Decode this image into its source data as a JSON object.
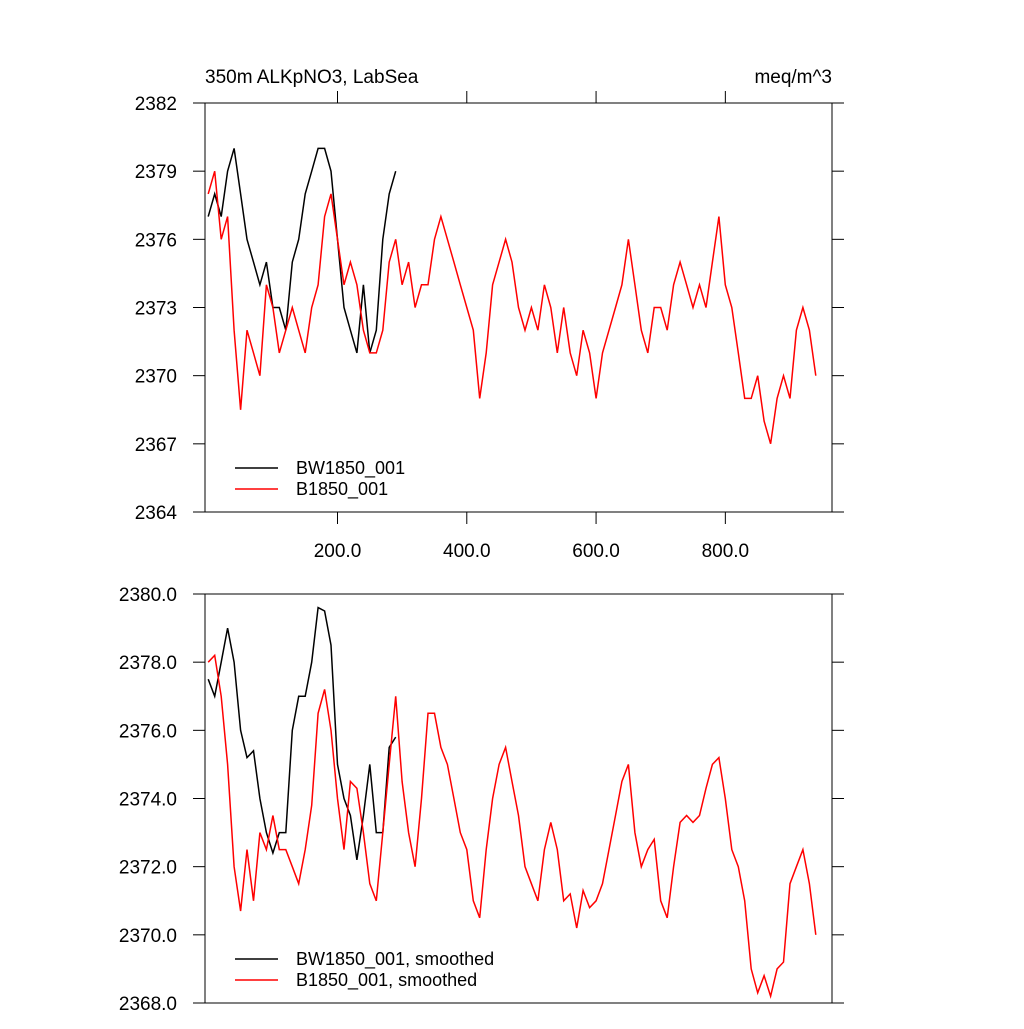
{
  "chart_data": [
    {
      "type": "line",
      "title": "350m ALKpNO3, LabSea",
      "units": "meq/m^3",
      "xlim": [
        -5,
        965
      ],
      "ylim": [
        2364,
        2382
      ],
      "xticks": [
        {
          "value": 200,
          "label": "200.0"
        },
        {
          "value": 400,
          "label": "400.0"
        },
        {
          "value": 600,
          "label": "600.0"
        },
        {
          "value": 800,
          "label": "800.0"
        }
      ],
      "yticks": [
        2364,
        2367,
        2370,
        2373,
        2376,
        2379,
        2382
      ],
      "series": [
        {
          "name": "BW1850_001",
          "color": "#000000",
          "x": [
            0,
            10,
            20,
            30,
            40,
            50,
            60,
            70,
            80,
            90,
            100,
            110,
            120,
            130,
            140,
            150,
            160,
            170,
            180,
            190,
            200,
            210,
            220,
            230,
            240,
            250,
            260,
            270,
            280,
            290
          ],
          "values": [
            2377,
            2378,
            2377,
            2379,
            2380,
            2378,
            2376,
            2375,
            2374,
            2375,
            2373,
            2373,
            2372,
            2375,
            2376,
            2378,
            2379,
            2380,
            2380,
            2379,
            2376,
            2373,
            2372,
            2371,
            2374,
            2371,
            2372,
            2376,
            2378,
            2379
          ]
        },
        {
          "name": "B1850_001",
          "color": "#ff0000",
          "x": [
            0,
            10,
            20,
            30,
            40,
            50,
            60,
            70,
            80,
            90,
            100,
            110,
            120,
            130,
            140,
            150,
            160,
            170,
            180,
            190,
            200,
            210,
            220,
            230,
            240,
            250,
            260,
            270,
            280,
            290,
            300,
            310,
            320,
            330,
            340,
            350,
            360,
            370,
            380,
            390,
            400,
            410,
            420,
            430,
            440,
            450,
            460,
            470,
            480,
            490,
            500,
            510,
            520,
            530,
            540,
            550,
            560,
            570,
            580,
            590,
            600,
            610,
            620,
            630,
            640,
            650,
            660,
            670,
            680,
            690,
            700,
            710,
            720,
            730,
            740,
            750,
            760,
            770,
            780,
            790,
            800,
            810,
            820,
            830,
            840,
            850,
            860,
            870,
            880,
            890,
            900,
            910,
            920,
            930,
            940
          ],
          "values": [
            2378,
            2379,
            2376,
            2377,
            2372,
            2368.5,
            2372,
            2371,
            2370,
            2374,
            2373,
            2371,
            2372,
            2373,
            2372,
            2371,
            2373,
            2374,
            2377,
            2378,
            2376,
            2374,
            2375,
            2374,
            2372,
            2371,
            2371,
            2372,
            2375,
            2376,
            2374,
            2375,
            2373,
            2374,
            2374,
            2376,
            2377,
            2376,
            2375,
            2374,
            2373,
            2372,
            2369,
            2371,
            2374,
            2375,
            2376,
            2375,
            2373,
            2372,
            2373,
            2372,
            2374,
            2373,
            2371,
            2373,
            2371,
            2370,
            2372,
            2371,
            2369,
            2371,
            2372,
            2373,
            2374,
            2376,
            2374,
            2372,
            2371,
            2373,
            2373,
            2372,
            2374,
            2375,
            2374,
            2373,
            2374,
            2373,
            2375,
            2377,
            2374,
            2373,
            2371,
            2369,
            2369,
            2370,
            2368,
            2367,
            2369,
            2370,
            2369,
            2372,
            2373,
            2372,
            2370
          ]
        }
      ]
    },
    {
      "type": "line",
      "xlim": [
        -5,
        965
      ],
      "ylim": [
        2368,
        2380
      ],
      "yticks": [
        {
          "value": 2368,
          "label": "2368.0"
        },
        {
          "value": 2370,
          "label": "2370.0"
        },
        {
          "value": 2372,
          "label": "2372.0"
        },
        {
          "value": 2374,
          "label": "2374.0"
        },
        {
          "value": 2376,
          "label": "2376.0"
        },
        {
          "value": 2378,
          "label": "2378.0"
        },
        {
          "value": 2380,
          "label": "2380.0"
        }
      ],
      "series": [
        {
          "name": "BW1850_001, smoothed",
          "color": "#000000",
          "x": [
            0,
            10,
            20,
            30,
            40,
            50,
            60,
            70,
            80,
            90,
            100,
            110,
            120,
            130,
            140,
            150,
            160,
            170,
            180,
            190,
            200,
            210,
            220,
            230,
            240,
            250,
            260,
            270,
            280,
            290
          ],
          "values": [
            2377.5,
            2377,
            2378,
            2379,
            2378,
            2376,
            2375.2,
            2375.4,
            2374,
            2373,
            2372.4,
            2373,
            2373,
            2376,
            2377,
            2377,
            2378,
            2379.6,
            2379.5,
            2378.5,
            2375,
            2374,
            2373.5,
            2372.2,
            2373.5,
            2375,
            2373,
            2373,
            2375.5,
            2375.8
          ]
        },
        {
          "name": "B1850_001, smoothed",
          "color": "#ff0000",
          "x": [
            0,
            10,
            20,
            30,
            40,
            50,
            60,
            70,
            80,
            90,
            100,
            110,
            120,
            130,
            140,
            150,
            160,
            170,
            180,
            190,
            200,
            210,
            220,
            230,
            240,
            250,
            260,
            270,
            280,
            290,
            300,
            310,
            320,
            330,
            340,
            350,
            360,
            370,
            380,
            390,
            400,
            410,
            420,
            430,
            440,
            450,
            460,
            470,
            480,
            490,
            500,
            510,
            520,
            530,
            540,
            550,
            560,
            570,
            580,
            590,
            600,
            610,
            620,
            630,
            640,
            650,
            660,
            670,
            680,
            690,
            700,
            710,
            720,
            730,
            740,
            750,
            760,
            770,
            780,
            790,
            800,
            810,
            820,
            830,
            840,
            850,
            860,
            870,
            880,
            890,
            900,
            910,
            920,
            930,
            940
          ],
          "values": [
            2378,
            2378.2,
            2377,
            2375,
            2372,
            2370.7,
            2372.5,
            2371,
            2373,
            2372.5,
            2373.5,
            2372.5,
            2372.5,
            2372,
            2371.5,
            2372.5,
            2373.8,
            2376.5,
            2377.2,
            2376,
            2374,
            2372.5,
            2374.5,
            2374.3,
            2373,
            2371.5,
            2371,
            2373,
            2375,
            2377,
            2374.5,
            2373,
            2372,
            2374,
            2376.5,
            2376.5,
            2375.5,
            2375,
            2374,
            2373,
            2372.5,
            2371,
            2370.5,
            2372.5,
            2374,
            2375,
            2375.5,
            2374.5,
            2373.5,
            2372,
            2371.5,
            2371,
            2372.5,
            2373.3,
            2372.5,
            2371,
            2371.2,
            2370.2,
            2371.3,
            2370.8,
            2371,
            2371.5,
            2372.5,
            2373.5,
            2374.5,
            2375,
            2373,
            2372,
            2372.5,
            2372.8,
            2371,
            2370.5,
            2372,
            2373.3,
            2373.5,
            2373.3,
            2373.5,
            2374.3,
            2375,
            2375.2,
            2374,
            2372.5,
            2372,
            2371,
            2369,
            2368.3,
            2368.8,
            2368.2,
            2369,
            2369.2,
            2371.5,
            2372,
            2372.5,
            2371.5,
            2370
          ]
        }
      ]
    }
  ]
}
